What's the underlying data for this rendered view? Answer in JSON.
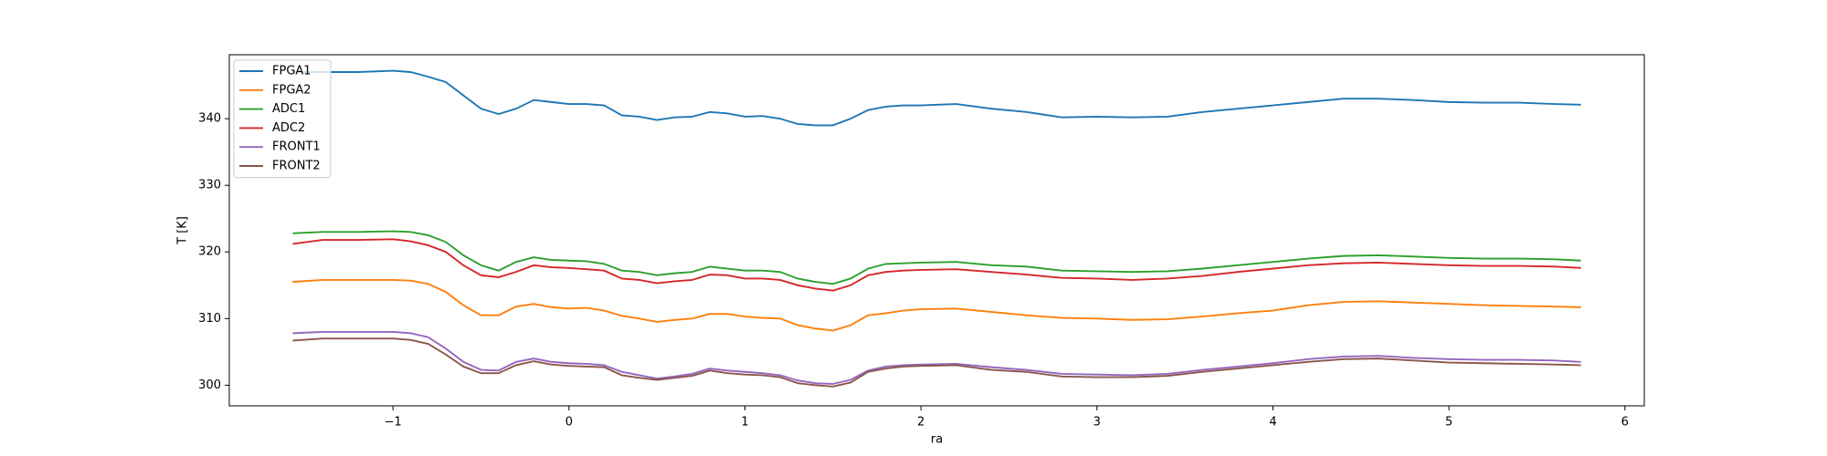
{
  "chart_data": {
    "type": "line",
    "x_label": "ra",
    "y_label": "T [K]",
    "x": [
      -1.57,
      -1.4,
      -1.2,
      -1.0,
      -0.9,
      -0.8,
      -0.7,
      -0.6,
      -0.5,
      -0.4,
      -0.3,
      -0.2,
      -0.1,
      0,
      0.1,
      0.2,
      0.3,
      0.4,
      0.5,
      0.6,
      0.7,
      0.8,
      0.9,
      1.0,
      1.1,
      1.2,
      1.3,
      1.4,
      1.5,
      1.6,
      1.7,
      1.8,
      1.9,
      2.0,
      2.2,
      2.4,
      2.6,
      2.8,
      3.0,
      3.2,
      3.4,
      3.6,
      3.8,
      4.0,
      4.2,
      4.4,
      4.6,
      4.8,
      5.0,
      5.2,
      5.4,
      5.6,
      5.75
    ],
    "series": [
      {
        "name": "FPGA1",
        "color": "#1f77b4",
        "values": [
          347,
          347,
          347,
          347.2,
          347,
          346.3,
          345.5,
          343.5,
          341.5,
          340.7,
          341.5,
          342.8,
          342.5,
          342.2,
          342.2,
          342,
          340.5,
          340.3,
          339.8,
          340.2,
          340.3,
          341,
          340.8,
          340.3,
          340.4,
          340,
          339.2,
          339,
          339,
          340,
          341.3,
          341.8,
          342,
          342,
          342.2,
          341.5,
          341,
          340.2,
          340.3,
          340.2,
          340.3,
          341,
          341.5,
          342,
          342.5,
          343,
          343,
          342.8,
          342.5,
          342.4,
          342.4,
          342.2,
          342.1
        ]
      },
      {
        "name": "FPGA2",
        "color": "#ff7f0e",
        "values": [
          315.5,
          315.8,
          315.8,
          315.8,
          315.7,
          315.2,
          314,
          312,
          310.5,
          310.5,
          311.8,
          312.2,
          311.7,
          311.5,
          311.6,
          311.2,
          310.4,
          310,
          309.5,
          309.8,
          310,
          310.7,
          310.7,
          310.3,
          310.1,
          310,
          309,
          308.5,
          308.2,
          309,
          310.5,
          310.8,
          311.2,
          311.4,
          311.5,
          311,
          310.5,
          310.1,
          310,
          309.8,
          309.9,
          310.3,
          310.8,
          311.2,
          312,
          312.5,
          312.6,
          312.4,
          312.2,
          312,
          311.9,
          311.8,
          311.7
        ]
      },
      {
        "name": "ADC1",
        "color": "#2ca02c",
        "values": [
          322.8,
          323,
          323,
          323.1,
          323,
          322.5,
          321.5,
          319.5,
          318,
          317.2,
          318.5,
          319.2,
          318.8,
          318.7,
          318.6,
          318.2,
          317.2,
          317,
          316.5,
          316.8,
          317,
          317.8,
          317.5,
          317.2,
          317.2,
          317,
          316,
          315.5,
          315.2,
          316,
          317.5,
          318.2,
          318.3,
          318.4,
          318.5,
          318,
          317.8,
          317.2,
          317.1,
          317,
          317.1,
          317.5,
          318,
          318.5,
          319,
          319.4,
          319.5,
          319.3,
          319.1,
          319,
          319,
          318.9,
          318.7
        ]
      },
      {
        "name": "ADC2",
        "color": "#d62728",
        "values": [
          321.2,
          321.8,
          321.8,
          321.9,
          321.6,
          321,
          320,
          318,
          316.5,
          316.2,
          317,
          318,
          317.7,
          317.6,
          317.4,
          317.2,
          316,
          315.8,
          315.3,
          315.6,
          315.8,
          316.6,
          316.5,
          316,
          316,
          315.8,
          315,
          314.5,
          314.2,
          315,
          316.5,
          317,
          317.2,
          317.3,
          317.4,
          317,
          316.6,
          316.1,
          316,
          315.8,
          316,
          316.4,
          317,
          317.5,
          318,
          318.3,
          318.4,
          318.2,
          318,
          317.9,
          317.9,
          317.8,
          317.6
        ]
      },
      {
        "name": "FRONT1",
        "color": "#9467bd",
        "values": [
          307.8,
          308,
          308,
          308,
          307.8,
          307.2,
          305.5,
          303.5,
          302.3,
          302.2,
          303.5,
          304,
          303.5,
          303.3,
          303.2,
          303,
          302,
          301.5,
          301,
          301.3,
          301.7,
          302.5,
          302.2,
          302,
          301.8,
          301.5,
          300.7,
          300.3,
          300.2,
          300.8,
          302.2,
          302.8,
          303,
          303.1,
          303.2,
          302.7,
          302.3,
          301.7,
          301.6,
          301.5,
          301.7,
          302.3,
          302.8,
          303.3,
          303.9,
          304.3,
          304.4,
          304.1,
          303.9,
          303.8,
          303.8,
          303.7,
          303.5
        ]
      },
      {
        "name": "FRONT2",
        "color": "#8c564b",
        "values": [
          306.7,
          307,
          307,
          307,
          306.8,
          306.2,
          304.6,
          302.8,
          301.8,
          301.8,
          303,
          303.6,
          303.1,
          302.9,
          302.8,
          302.7,
          301.5,
          301.1,
          300.8,
          301.1,
          301.4,
          302.2,
          301.8,
          301.6,
          301.5,
          301.2,
          300.3,
          300,
          299.8,
          300.4,
          302,
          302.5,
          302.8,
          302.9,
          303,
          302.3,
          302,
          301.3,
          301.2,
          301.2,
          301.4,
          302,
          302.5,
          303,
          303.5,
          303.9,
          304,
          303.7,
          303.4,
          303.3,
          303.2,
          303.1,
          303
        ]
      }
    ],
    "xlim": [
      -1.93,
      6.11
    ],
    "ylim": [
      296.9,
      349.6
    ],
    "xticks": [
      {
        "value": -1,
        "label": "−1"
      },
      0,
      1,
      2,
      3,
      4,
      5,
      6
    ],
    "yticks": [
      300,
      310,
      320,
      330,
      340
    ],
    "legend": "upper left"
  }
}
